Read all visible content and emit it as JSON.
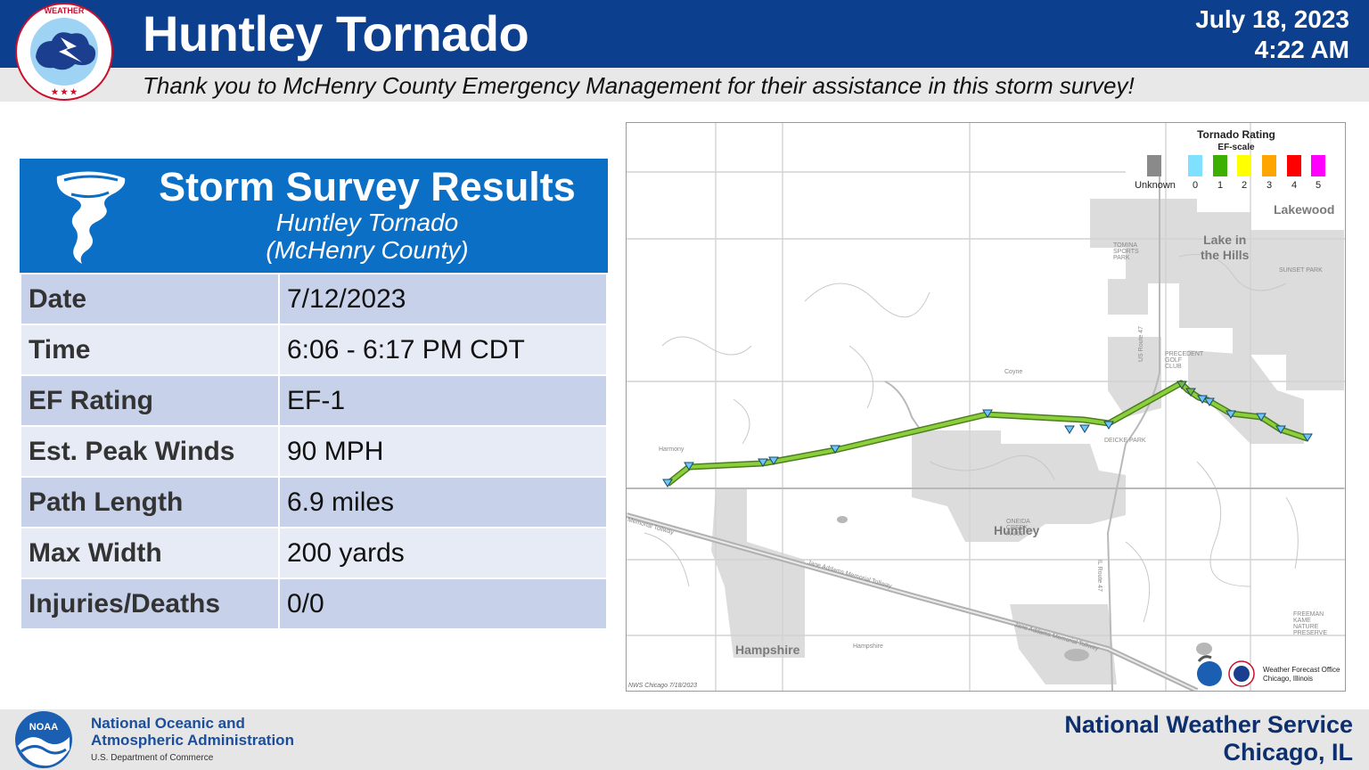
{
  "header": {
    "title": "Huntley Tornado",
    "date": "July 18, 2023",
    "time": "4:22 AM",
    "thanks": "Thank you to McHenry County Emergency Management for their assistance in this storm survey!",
    "logo_text_top": "NATIONAL WEATHER SERVICE",
    "logo_icon": "nws-logo-icon"
  },
  "card": {
    "title": "Storm Survey Results",
    "subtitle_1": "Huntley Tornado",
    "subtitle_2": "(McHenry County)",
    "icon": "tornado-icon",
    "rows": [
      {
        "key": "Date",
        "value": "7/12/2023"
      },
      {
        "key": "Time",
        "value": "6:06 - 6:17 PM CDT"
      },
      {
        "key": "EF Rating",
        "value": "EF-1"
      },
      {
        "key": "Est. Peak Winds",
        "value": "90 MPH"
      },
      {
        "key": "Path Length",
        "value": "6.9 miles"
      },
      {
        "key": "Max Width",
        "value": "200 yards"
      },
      {
        "key": "Injuries/Deaths",
        "value": "0/0"
      }
    ]
  },
  "map": {
    "legend": {
      "title": "Tornado Rating",
      "scale": "EF-scale",
      "items": [
        {
          "label": "Unknown",
          "color": "#8a8a8a"
        },
        {
          "label": "0",
          "color": "#7fe0ff"
        },
        {
          "label": "1",
          "color": "#3cb000"
        },
        {
          "label": "2",
          "color": "#ffff00"
        },
        {
          "label": "3",
          "color": "#ffa500"
        },
        {
          "label": "4",
          "color": "#ff0000"
        },
        {
          "label": "5",
          "color": "#ff00ff"
        }
      ]
    },
    "track_color": "#7ab830",
    "towns": {
      "lakewood": "Lakewood",
      "lake_in_the_hills_1": "Lake in",
      "lake_in_the_hills_2": "the Hills",
      "huntley": "Huntley",
      "hampshire": "Hampshire"
    },
    "small_labels": {
      "coyne": "Coyne",
      "harmony": "Harmony",
      "hampshire_sm": "Hampshire",
      "tollway_1": "Memorial Tollway",
      "tollway_2": "Jane Addams Memorial Tollway",
      "tollway_3": "Jane Addams Memorial Tollway",
      "route_47": "US Route 47",
      "route_47b": "IL Route 47",
      "deicke": "DEICKE PARK",
      "precedent": "PRECEDENT GOLF CLUB",
      "sports": "TOMINA SPORTS PARK",
      "sunset": "SUNSET PARK",
      "freeman": "FREEMAN KAME NATURE PRESERVE",
      "ohala": "ONEIDA CREEK PARK"
    },
    "wfo_1": "Weather Forecast Office",
    "wfo_2": "Chicago, Illinois",
    "credit": "NWS Chicago  7/18/2023"
  },
  "footer": {
    "noaa_line1": "National Oceanic and",
    "noaa_line2": "Atmospheric Administration",
    "noaa_dept": "U.S. Department of Commerce",
    "nws_line1": "National Weather Service",
    "nws_line2": "Chicago, IL",
    "noaa_icon": "noaa-logo-icon"
  }
}
